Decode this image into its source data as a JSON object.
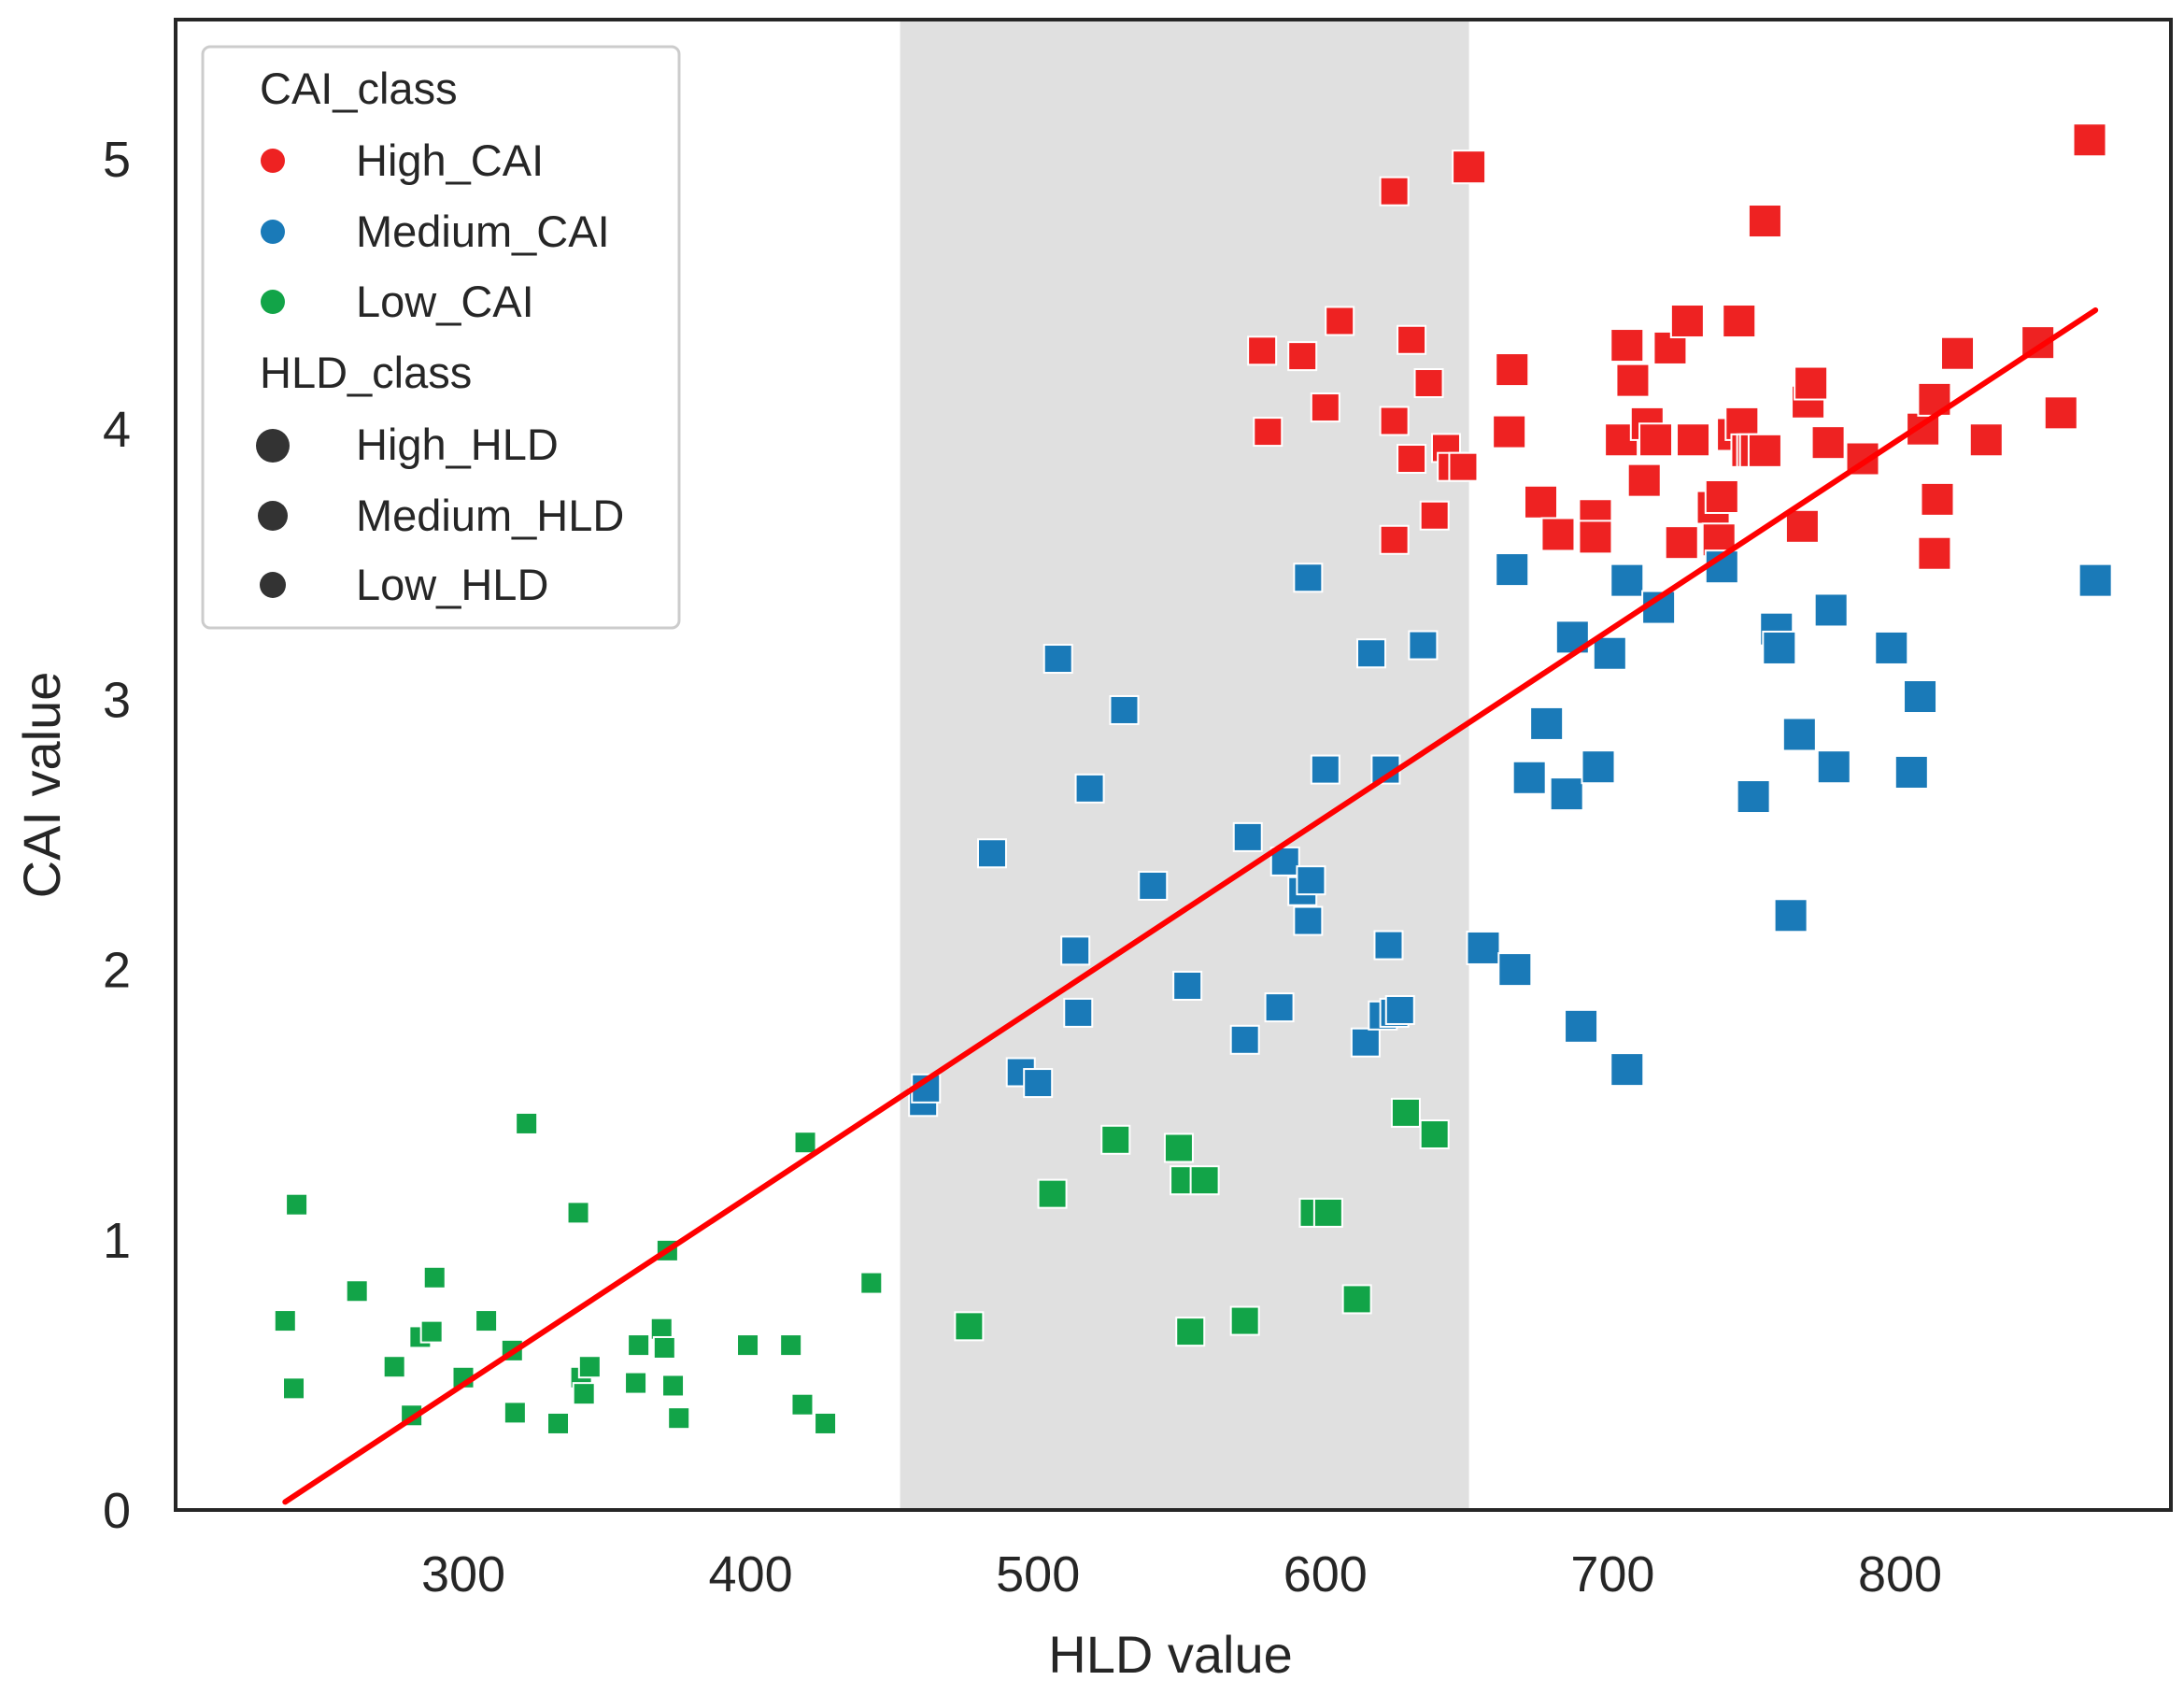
{
  "chart_data": {
    "type": "scatter",
    "title": "",
    "xlabel": "HLD value",
    "ylabel": "CAI value",
    "xlim": [
      205,
      890
    ],
    "ylim": [
      0,
      5.5
    ],
    "xticks": [
      300,
      400,
      500,
      600,
      700,
      800
    ],
    "yticks": [
      0,
      1,
      2,
      3,
      4,
      5
    ],
    "xtick_labels": [
      "300",
      "400",
      "500",
      "600",
      "700",
      "800"
    ],
    "ytick_labels": [
      "0",
      "1",
      "2",
      "3",
      "4",
      "5"
    ],
    "grid": false,
    "legend_position": "top-left",
    "shaded_region": {
      "x_start": 452,
      "x_end": 650,
      "color": "#e0e0e0"
    },
    "trend_line": {
      "x": [
        238,
        868
      ],
      "y": [
        0.03,
        4.44
      ],
      "color": "#ff0000"
    },
    "marker_shape": "square",
    "legend": {
      "hue_title": "CAI_class",
      "hue_entries": [
        {
          "label": "High_CAI",
          "color": "#ee2222"
        },
        {
          "label": "Medium_CAI",
          "color": "#1a7ab8"
        },
        {
          "label": "Low_CAI",
          "color": "#12a448"
        }
      ],
      "size_title": "HLD_class",
      "size_entries": [
        {
          "label": "High_HLD"
        },
        {
          "label": "Medium_HLD"
        },
        {
          "label": "Low_HLD"
        }
      ]
    },
    "series": [
      {
        "name": "High_CAI",
        "color": "#ee2222",
        "x": [
          578,
          592,
          605,
          600,
          580,
          624,
          630,
          636,
          624,
          650,
          630,
          642,
          638,
          644,
          648,
          624,
          665,
          664,
          675,
          681,
          694,
          694,
          705,
          707,
          705,
          703,
          711,
          712,
          715,
          720,
          724,
          726,
          728,
          726,
          735,
          737,
          742,
          738,
          744,
          745,
          747,
          749,
          750,
          753,
          753,
          766,
          768,
          769,
          775,
          787,
          808,
          812,
          812,
          813,
          820,
          830,
          848,
          856,
          866
        ],
        "y": [
          4.29,
          4.27,
          4.4,
          4.08,
          3.99,
          4.88,
          4.33,
          4.17,
          4.03,
          4.97,
          3.89,
          3.93,
          3.68,
          3.86,
          3.86,
          3.59,
          4.22,
          3.99,
          3.73,
          3.61,
          3.68,
          3.6,
          4.31,
          4.18,
          3.96,
          3.96,
          3.81,
          4.02,
          3.96,
          4.3,
          3.58,
          4.4,
          3.96,
          4.4,
          3.71,
          3.59,
          3.98,
          3.75,
          4.4,
          4.02,
          3.92,
          3.92,
          3.92,
          4.77,
          3.92,
          3.64,
          4.1,
          4.17,
          3.95,
          3.89,
          4.0,
          4.11,
          3.54,
          3.74,
          4.28,
          3.96,
          4.32,
          4.06,
          5.07
        ]
      },
      {
        "name": "Medium_CAI",
        "color": "#1a7ab8",
        "x": [
          460,
          461,
          484,
          494,
          500,
          507,
          513,
          514,
          518,
          530,
          540,
          552,
          572,
          573,
          584,
          586,
          592,
          594,
          594,
          595,
          600,
          614,
          616,
          620,
          621,
          622,
          624,
          626,
          634,
          655,
          665,
          666,
          671,
          677,
          684,
          686,
          689,
          695,
          699,
          705,
          705,
          716,
          738,
          749,
          757,
          758,
          762,
          765,
          776,
          777,
          797,
          804,
          807,
          868
        ],
        "y": [
          1.51,
          1.56,
          2.43,
          1.62,
          1.58,
          3.15,
          2.07,
          1.84,
          2.67,
          2.96,
          2.31,
          1.94,
          1.74,
          2.49,
          1.86,
          2.4,
          2.29,
          2.18,
          3.45,
          2.33,
          2.74,
          1.73,
          3.17,
          1.83,
          2.74,
          2.09,
          1.84,
          1.85,
          3.2,
          2.08,
          3.48,
          2.0,
          2.71,
          2.91,
          2.65,
          3.23,
          1.79,
          2.75,
          3.17,
          1.63,
          3.44,
          3.34,
          3.49,
          2.64,
          3.26,
          3.19,
          2.2,
          2.87,
          3.33,
          2.75,
          3.19,
          2.73,
          3.01,
          3.44
        ]
      },
      {
        "name": "Low_CAI",
        "color": "#12a448",
        "x": [
          238,
          241,
          242,
          263,
          276,
          282,
          285,
          289,
          290,
          300,
          308,
          317,
          318,
          322,
          333,
          340,
          341,
          342,
          344,
          360,
          361,
          369,
          370,
          371,
          373,
          375,
          399,
          414,
          418,
          419,
          426,
          442,
          476,
          505,
          527,
          549,
          551,
          553,
          558,
          572,
          596,
          601,
          611,
          628,
          638
        ],
        "y": [
          0.7,
          0.45,
          1.13,
          0.81,
          0.53,
          0.35,
          0.64,
          0.66,
          0.86,
          0.49,
          0.7,
          0.59,
          0.36,
          1.43,
          0.32,
          1.1,
          0.49,
          0.43,
          0.53,
          0.47,
          0.61,
          0.67,
          0.6,
          0.96,
          0.46,
          0.34,
          0.61,
          0.61,
          0.39,
          1.36,
          0.32,
          0.84,
          0.68,
          1.17,
          1.37,
          1.34,
          1.22,
          0.66,
          1.22,
          0.7,
          1.1,
          1.1,
          0.78,
          1.47,
          1.39
        ]
      }
    ]
  }
}
